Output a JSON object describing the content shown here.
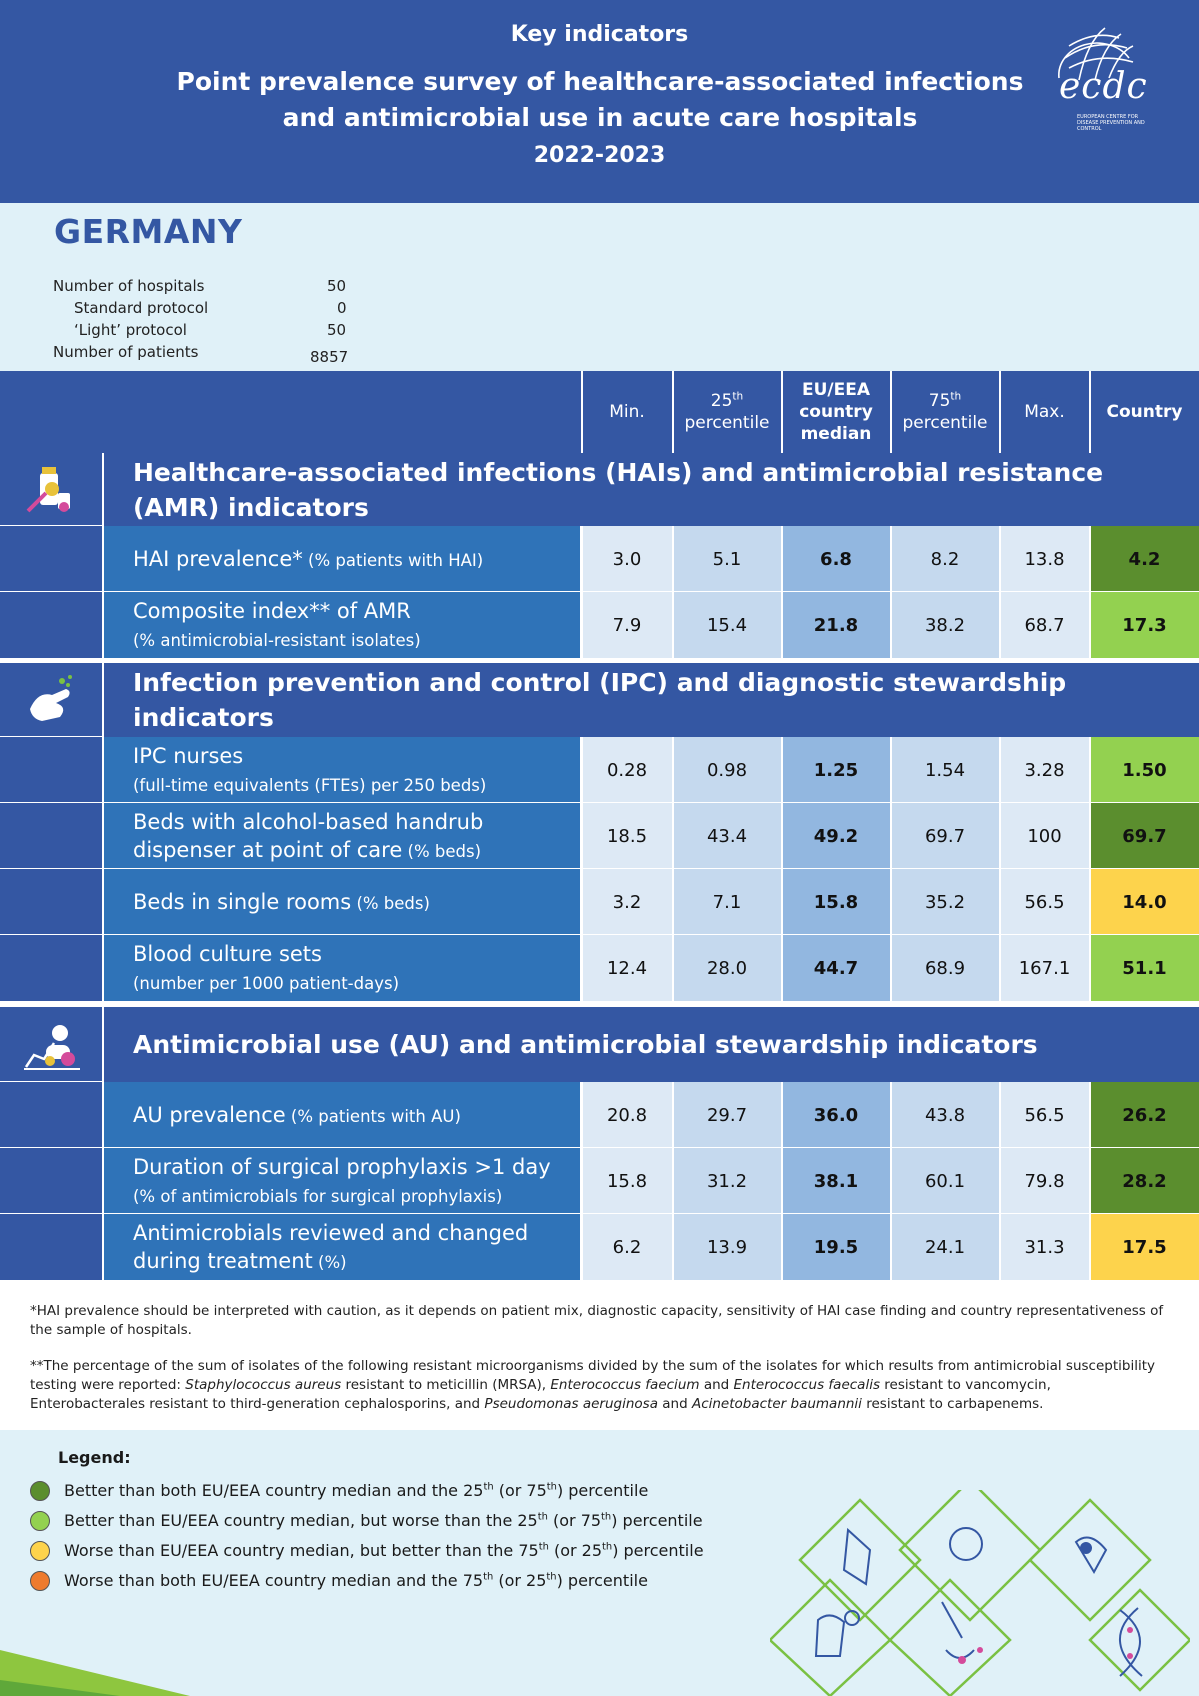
{
  "header": {
    "kicker": "Key indicators",
    "title_line1": "Point prevalence survey of healthcare-associated infections",
    "title_line2": "and antimicrobial use in acute care hospitals",
    "years": "2022-2023",
    "logo_text": "ecdc",
    "logo_sub": "EUROPEAN CENTRE FOR DISEASE PREVENTION AND CONTROL"
  },
  "country": {
    "name": "GERMANY",
    "stats": [
      {
        "label": "Number of hospitals",
        "value": "50"
      },
      {
        "label": "Standard protocol",
        "value": "0"
      },
      {
        "label": "‘Light’ protocol",
        "value": "50"
      },
      {
        "label": "Number of patients",
        "value": "8857"
      }
    ]
  },
  "columns": {
    "min": "Min.",
    "p25_num": "25",
    "p25_sup": "th",
    "p25_word": "percentile",
    "median_l1": "EU/EEA",
    "median_l2": "country",
    "median_l3": "median",
    "p75_num": "75",
    "p75_sup": "th",
    "p75_word": "percentile",
    "max": "Max.",
    "country": "Country"
  },
  "colors": {
    "dark_green": "#5b8e2e",
    "light_green": "#93d150",
    "yellow": "#fdd34c",
    "orange": "#ee7b2e",
    "header_blue": "#3457a3",
    "row_blue": "#2f73b8",
    "legend_bg": "#e0f1f8"
  },
  "chart_data": {
    "type": "table",
    "columns": [
      "Min.",
      "25th percentile",
      "EU/EEA country median",
      "75th percentile",
      "Max.",
      "Country"
    ],
    "sections": [
      {
        "title_l1": "Healthcare-associated infections (HAIs) and antimicrobial resistance",
        "title_l2": "(AMR) indicators",
        "icon": "medicine-bottle-icon",
        "rows": [
          {
            "label_main": "HAI prevalence*",
            "label_sub": " (% patients with HAI)",
            "sub_newline": false,
            "min": "3.0",
            "p25": "5.1",
            "median": "6.8",
            "p75": "8.2",
            "max": "13.8",
            "country": "4.2",
            "rating": "dark_green"
          },
          {
            "label_main": "Composite index** of AMR",
            "label_sub": "(% antimicrobial-resistant isolates)",
            "sub_newline": true,
            "min": "7.9",
            "p25": "15.4",
            "median": "21.8",
            "p75": "38.2",
            "max": "68.7",
            "country": "17.3",
            "rating": "light_green"
          }
        ]
      },
      {
        "title_l1": "Infection prevention and control (IPC) and diagnostic stewardship",
        "title_l2": "indicators",
        "icon": "hand-washing-icon",
        "rows": [
          {
            "label_main": "IPC nurses",
            "label_sub": "(full-time equivalents (FTEs) per 250 beds)",
            "sub_newline": true,
            "min": "0.28",
            "p25": "0.98",
            "median": "1.25",
            "p75": "1.54",
            "max": "3.28",
            "country": "1.50",
            "rating": "light_green"
          },
          {
            "label_main": "Beds with alcohol-based handrub",
            "label_main2": "dispenser at point of care",
            "label_sub": " (% beds)",
            "sub_newline": false,
            "min": "18.5",
            "p25": "43.4",
            "median": "49.2",
            "p75": "69.7",
            "max": "100",
            "country": "69.7",
            "rating": "dark_green"
          },
          {
            "label_main": "Beds in single rooms",
            "label_sub": " (% beds)",
            "sub_newline": false,
            "min": "3.2",
            "p25": "7.1",
            "median": "15.8",
            "p75": "35.2",
            "max": "56.5",
            "country": "14.0",
            "rating": "yellow"
          },
          {
            "label_main": "Blood culture sets",
            "label_sub": "(number per 1000 patient-days)",
            "sub_newline": true,
            "min": "12.4",
            "p25": "28.0",
            "median": "44.7",
            "p75": "68.9",
            "max": "167.1",
            "country": "51.1",
            "rating": "light_green"
          }
        ]
      },
      {
        "title_l1": "Antimicrobial use (AU) and antimicrobial stewardship indicators",
        "title_l2": "",
        "icon": "pills-chart-icon",
        "rows": [
          {
            "label_main": "AU prevalence",
            "label_sub": " (% patients with AU)",
            "sub_newline": false,
            "min": "20.8",
            "p25": "29.7",
            "median": "36.0",
            "p75": "43.8",
            "max": "56.5",
            "country": "26.2",
            "rating": "dark_green"
          },
          {
            "label_main": "Duration of surgical prophylaxis >1 day",
            "label_sub": "(% of antimicrobials for surgical prophylaxis)",
            "sub_newline": true,
            "min": "15.8",
            "p25": "31.2",
            "median": "38.1",
            "p75": "60.1",
            "max": "79.8",
            "country": "28.2",
            "rating": "dark_green"
          },
          {
            "label_main": "Antimicrobials reviewed and changed",
            "label_main2": "during treatment",
            "label_sub": " (%)",
            "sub_newline": false,
            "min": "6.2",
            "p25": "13.9",
            "median": "19.5",
            "p75": "24.1",
            "max": "31.3",
            "country": "17.5",
            "rating": "yellow"
          }
        ]
      }
    ]
  },
  "notes": {
    "note1": "*HAI prevalence should be interpreted with caution, as it depends on patient mix, diagnostic capacity, sensitivity of HAI case finding and country representativeness of the sample of hospitals.",
    "note2_a": "**The percentage of the sum of isolates of the following resistant microorganisms divided by the sum of the isolates for which results from antimicrobial susceptibility testing were reported: ",
    "note2_b": "Staphylococcus aureus",
    "note2_c": " resistant to meticillin (MRSA), ",
    "note2_d": "Enterococcus faecium",
    "note2_e": " and ",
    "note2_f": "Enterococcus faecalis",
    "note2_g": " resistant to vancomycin, Enterobacterales resistant to third-generation cephalosporins, and ",
    "note2_h": "Pseudomonas aeruginosa",
    "note2_i": " and ",
    "note2_j": "Acinetobacter baumannii",
    "note2_k": " resistant to carbapenems."
  },
  "legend": {
    "title": "Legend:",
    "items": [
      {
        "color": "dark_green",
        "t1": "Better than both EU/EEA country median and the 25",
        "s1": "th",
        "t2": " (or 75",
        "s2": "th",
        "t3": ") percentile"
      },
      {
        "color": "light_green",
        "t1": "Better than EU/EEA country median, but worse than the 25",
        "s1": "th",
        "t2": " (or 75",
        "s2": "th",
        "t3": ") percentile"
      },
      {
        "color": "yellow",
        "t1": "Worse than EU/EEA country median, but better than the 75",
        "s1": "th",
        "t2": " (or 25",
        "s2": "th",
        "t3": ") percentile"
      },
      {
        "color": "orange",
        "t1": "Worse than both EU/EEA country median and the 75",
        "s1": "th",
        "t2": " (or 25",
        "s2": "th",
        "t3": ") percentile"
      }
    ]
  }
}
